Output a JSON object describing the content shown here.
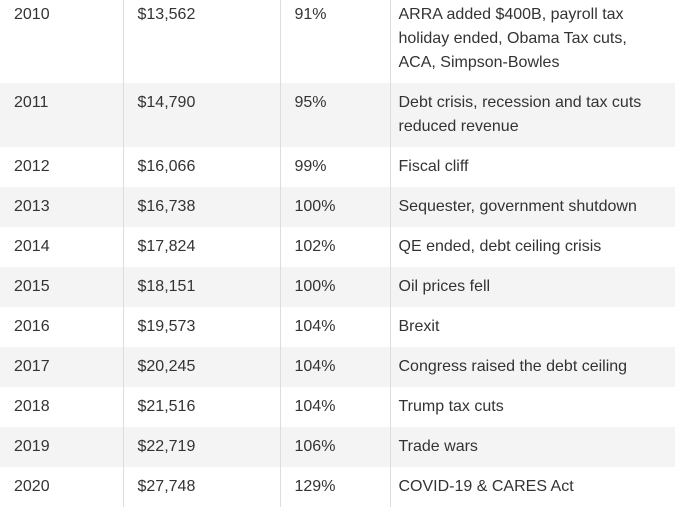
{
  "table": {
    "rows": [
      [
        "2010",
        "$13,562",
        "91%",
        "ARRA added $400B, payroll tax holiday ended, Obama Tax cuts, ACA, Simpson-Bowles"
      ],
      [
        "2011",
        "$14,790",
        "95%",
        "Debt crisis, recession and tax cuts reduced revenue"
      ],
      [
        "2012",
        "$16,066",
        "99%",
        "Fiscal cliff"
      ],
      [
        "2013",
        "$16,738",
        "100%",
        "Sequester, government shutdown"
      ],
      [
        "2014",
        "$17,824",
        "102%",
        "QE ended, debt ceiling crisis"
      ],
      [
        "2015",
        "$18,151",
        "100%",
        "Oil prices fell"
      ],
      [
        "2016",
        "$19,573",
        "104%",
        "Brexit"
      ],
      [
        "2017",
        "$20,245",
        "104%",
        "Congress raised the debt ceiling"
      ],
      [
        "2018",
        "$21,516",
        "104%",
        "Trump tax cuts"
      ],
      [
        "2019",
        "$22,719",
        "106%",
        "Trade wars"
      ],
      [
        "2020",
        "$27,748",
        "129%",
        "COVID-19 & CARES Act"
      ]
    ]
  }
}
